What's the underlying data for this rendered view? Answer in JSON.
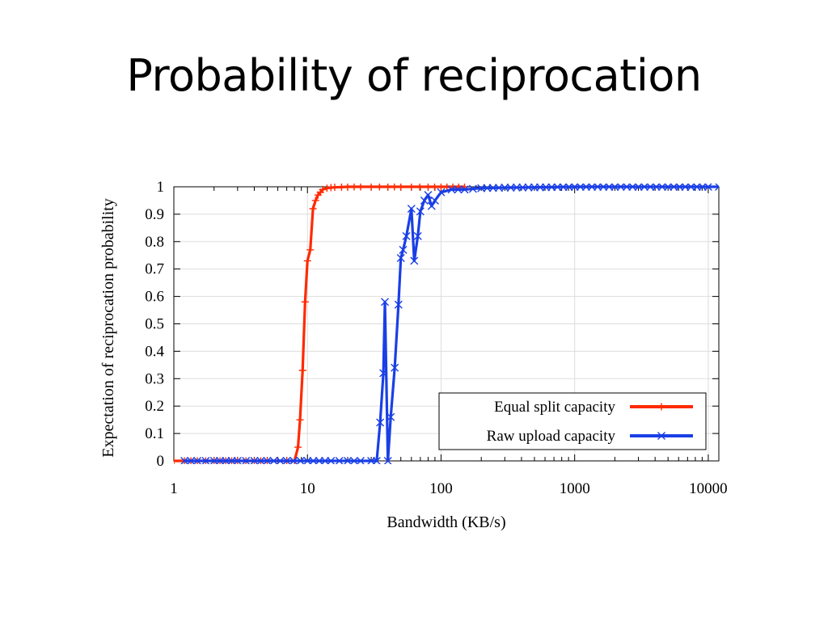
{
  "slide": {
    "title": "Probability of reciprocation"
  },
  "chart_data": {
    "type": "line",
    "xlabel": "Bandwidth (KB/s)",
    "ylabel": "Expectation of reciprocation probability",
    "x_scale": "log",
    "xlim": [
      1,
      12000
    ],
    "ylim": [
      0,
      1
    ],
    "x_ticks": [
      {
        "value": 1,
        "label": "1"
      },
      {
        "value": 10,
        "label": "10"
      },
      {
        "value": 100,
        "label": "100"
      },
      {
        "value": 1000,
        "label": "1000"
      },
      {
        "value": 10000,
        "label": "10000"
      }
    ],
    "y_ticks": [
      {
        "value": 0,
        "label": "0"
      },
      {
        "value": 0.1,
        "label": "0.1"
      },
      {
        "value": 0.2,
        "label": "0.2"
      },
      {
        "value": 0.3,
        "label": "0.3"
      },
      {
        "value": 0.4,
        "label": "0.4"
      },
      {
        "value": 0.5,
        "label": "0.5"
      },
      {
        "value": 0.6,
        "label": "0.6"
      },
      {
        "value": 0.7,
        "label": "0.7"
      },
      {
        "value": 0.8,
        "label": "0.8"
      },
      {
        "value": 0.9,
        "label": "0.9"
      },
      {
        "value": 1,
        "label": "1"
      }
    ],
    "grid": true,
    "legend_position": "bottom-right",
    "series": [
      {
        "name": "Equal split capacity",
        "color": "#ff2a00",
        "marker": "plus",
        "x": [
          1,
          1.2,
          1.5,
          2,
          3,
          4,
          5,
          6,
          7,
          8,
          8.5,
          8.8,
          9.2,
          9.6,
          10,
          10.5,
          11,
          11.5,
          12,
          12.5,
          13,
          14,
          15,
          16,
          18,
          20,
          25,
          30,
          40,
          50,
          60,
          80,
          100,
          150
        ],
        "y": [
          0,
          0,
          0,
          0,
          0,
          0,
          0,
          0,
          0,
          0,
          0.05,
          0.15,
          0.33,
          0.58,
          0.73,
          0.77,
          0.92,
          0.95,
          0.97,
          0.98,
          0.99,
          0.995,
          0.997,
          0.998,
          0.999,
          1,
          1,
          1,
          1,
          1,
          1,
          1,
          1,
          1
        ]
      },
      {
        "name": "Raw upload capacity",
        "color": "#1a3fe6",
        "marker": "x",
        "x": [
          1.2,
          1.5,
          2,
          3,
          4,
          5,
          7,
          10,
          15,
          20,
          25,
          30,
          33,
          35,
          37,
          38,
          40,
          42,
          45,
          48,
          50,
          52,
          55,
          60,
          63,
          67,
          70,
          75,
          80,
          85,
          90,
          100,
          120,
          150,
          200,
          300,
          500,
          1000,
          2000,
          5000,
          10000,
          12000
        ],
        "y": [
          0,
          0,
          0,
          0,
          0,
          0,
          0,
          0,
          0,
          0,
          0,
          0,
          0,
          0.14,
          0.32,
          0.58,
          0,
          0.16,
          0.34,
          0.57,
          0.74,
          0.77,
          0.82,
          0.92,
          0.73,
          0.82,
          0.91,
          0.95,
          0.97,
          0.93,
          0.95,
          0.98,
          0.99,
          0.99,
          0.995,
          0.997,
          0.998,
          1,
          1,
          1,
          1,
          1
        ]
      }
    ]
  }
}
